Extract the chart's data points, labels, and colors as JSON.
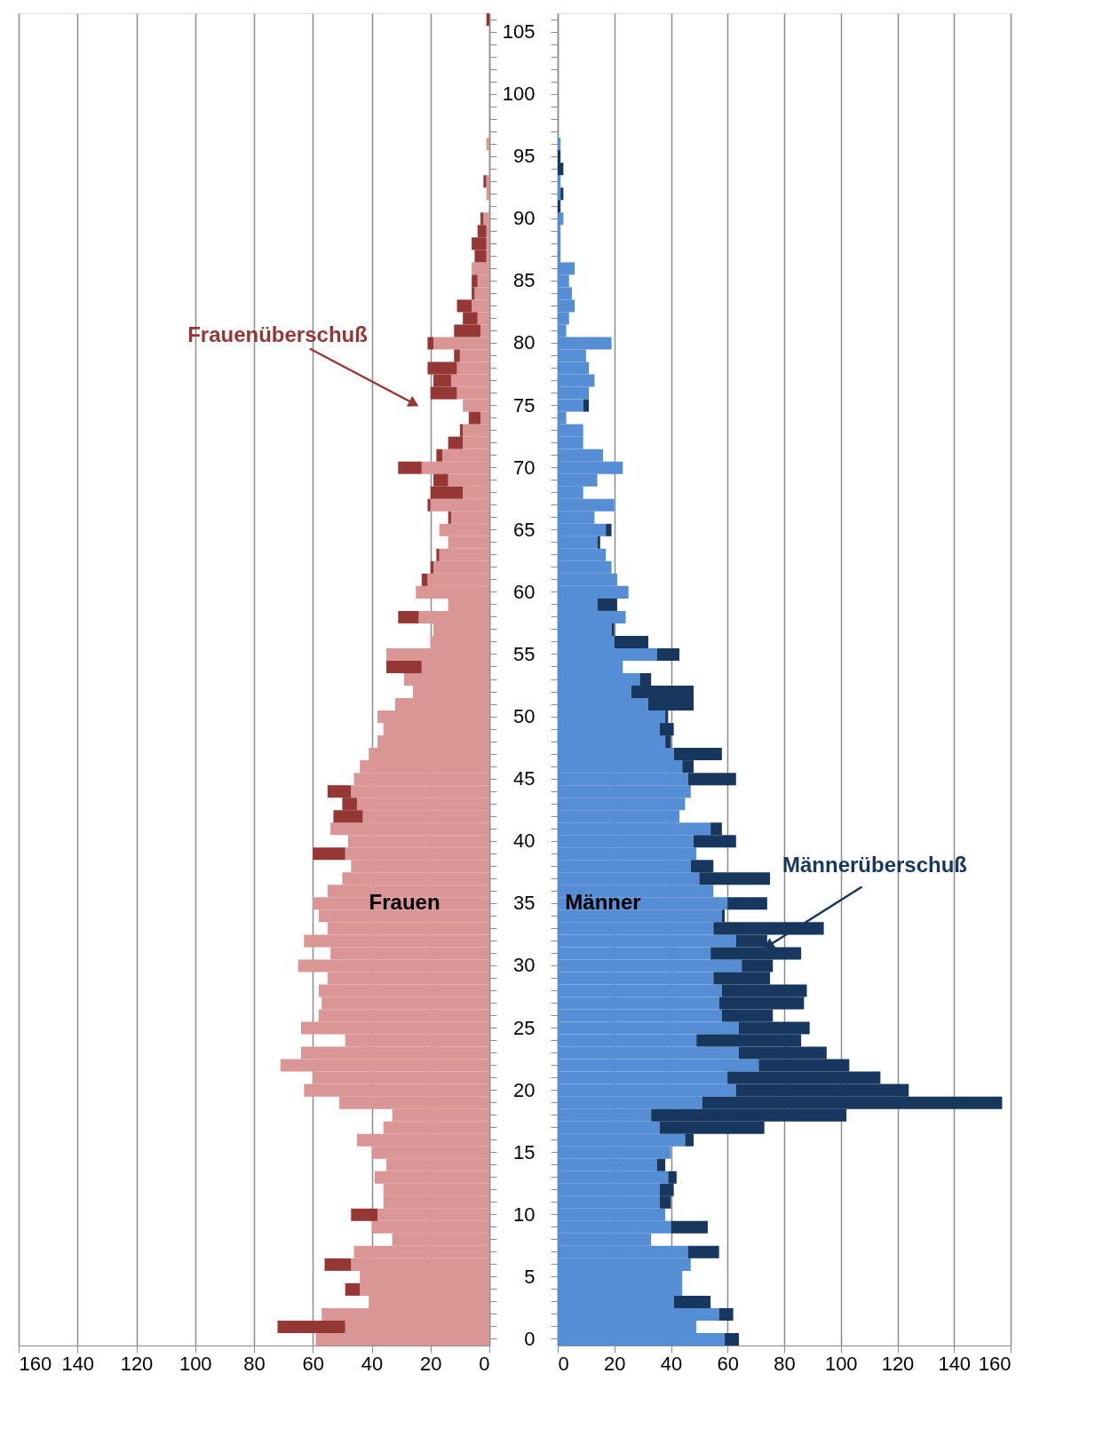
{
  "chart_data": [
    {
      "type": "bar",
      "orientation": "horizontal",
      "stacked": true,
      "grid": "x",
      "tick_labels": "x",
      "categories": [
        null,
        "105",
        null,
        null,
        null,
        null,
        "100",
        null,
        null,
        null,
        null,
        "95",
        null,
        null,
        null,
        null,
        "90",
        null,
        null,
        null,
        null,
        "85",
        null,
        null,
        null,
        null,
        "80",
        null,
        null,
        null,
        null,
        "75",
        null,
        null,
        null,
        null,
        "70",
        null,
        null,
        null,
        null,
        "65",
        null,
        null,
        null,
        null,
        "60",
        null,
        null,
        null,
        null,
        "55",
        null,
        null,
        null,
        null,
        "50",
        null,
        null,
        null,
        null,
        "45",
        null,
        null,
        null,
        null,
        "40",
        null,
        null,
        null,
        null,
        "35",
        null,
        null,
        null,
        null,
        "30",
        null,
        null,
        null,
        null,
        "25",
        null,
        null,
        null,
        null,
        "20",
        null,
        null,
        null,
        null,
        "15",
        null,
        null,
        null,
        null,
        "10",
        null,
        null,
        null,
        null,
        "5",
        null,
        null,
        null,
        null,
        "0"
      ],
      "xlim": [
        160,
        0
      ],
      "xticks": [
        160,
        140,
        120,
        100,
        80,
        60,
        40,
        20,
        0
      ],
      "series": [
        {
          "name": "Frauen",
          "color": "#d99694",
          "values": [
            null,
            null,
            null,
            null,
            null,
            null,
            null,
            null,
            null,
            null,
            1,
            null,
            null,
            1,
            1,
            null,
            2,
            1,
            1,
            1,
            6,
            4,
            5,
            6,
            4,
            3,
            19,
            10,
            11,
            13,
            11,
            9,
            3,
            9,
            9,
            16,
            23,
            14,
            9,
            20,
            13,
            17,
            14,
            17,
            19,
            21,
            25,
            14,
            24,
            19,
            20,
            35,
            23,
            29,
            26,
            32,
            38,
            36,
            38,
            41,
            44,
            46,
            47,
            45,
            43,
            54,
            48,
            49,
            47,
            50,
            55,
            60,
            58,
            55,
            63,
            54,
            65,
            55,
            58,
            57,
            58,
            64,
            49,
            64,
            71,
            60,
            63,
            51,
            33,
            36,
            45,
            40,
            35,
            39,
            36,
            36,
            38,
            40,
            33,
            46,
            47,
            44,
            44,
            41,
            57,
            49,
            59
          ]
        },
        {
          "name": "Frauenüberschuß",
          "color": "#953735",
          "values": [
            1,
            null,
            null,
            null,
            null,
            null,
            null,
            null,
            null,
            null,
            null,
            null,
            null,
            1,
            null,
            null,
            1,
            3,
            5,
            4,
            null,
            2,
            1,
            5,
            5,
            9,
            2,
            2,
            10,
            6,
            9,
            null,
            4,
            1,
            5,
            2,
            8,
            5,
            11,
            1,
            1,
            null,
            null,
            1,
            1,
            2,
            null,
            null,
            7,
            null,
            null,
            null,
            12,
            null,
            null,
            null,
            null,
            null,
            null,
            null,
            null,
            null,
            8,
            5,
            10,
            null,
            null,
            11,
            null,
            null,
            null,
            null,
            null,
            null,
            null,
            null,
            null,
            null,
            null,
            null,
            null,
            null,
            null,
            null,
            null,
            null,
            null,
            null,
            null,
            null,
            null,
            null,
            null,
            null,
            null,
            null,
            9,
            null,
            null,
            null,
            9,
            null,
            5,
            null,
            null,
            23,
            null
          ]
        }
      ]
    },
    {
      "type": "bar",
      "orientation": "horizontal",
      "stacked": true,
      "grid": "x",
      "categories": [
        null,
        "105",
        null,
        null,
        null,
        null,
        "100",
        null,
        null,
        null,
        null,
        "95",
        null,
        null,
        null,
        null,
        "90",
        null,
        null,
        null,
        null,
        "85",
        null,
        null,
        null,
        null,
        "80",
        null,
        null,
        null,
        null,
        "75",
        null,
        null,
        null,
        null,
        "70",
        null,
        null,
        null,
        null,
        "65",
        null,
        null,
        null,
        null,
        "60",
        null,
        null,
        null,
        null,
        "55",
        null,
        null,
        null,
        null,
        "50",
        null,
        null,
        null,
        null,
        "45",
        null,
        null,
        null,
        null,
        "40",
        null,
        null,
        null,
        null,
        "35",
        null,
        null,
        null,
        null,
        "30",
        null,
        null,
        null,
        null,
        "25",
        null,
        null,
        null,
        null,
        "20",
        null,
        null,
        null,
        null,
        "15",
        null,
        null,
        null,
        null,
        "10",
        null,
        null,
        null,
        null,
        "5",
        null,
        null,
        null,
        null,
        "0"
      ],
      "xlim": [
        0,
        160
      ],
      "xticks": [
        0,
        20,
        40,
        60,
        80,
        100,
        120,
        140,
        160
      ],
      "series": [
        {
          "name": "Männer",
          "color": "#558ed5",
          "values": [
            null,
            null,
            null,
            null,
            null,
            null,
            null,
            null,
            null,
            null,
            1,
            null,
            null,
            1,
            1,
            null,
            2,
            1,
            1,
            1,
            6,
            4,
            5,
            6,
            4,
            3,
            19,
            10,
            11,
            13,
            11,
            9,
            3,
            9,
            9,
            16,
            23,
            14,
            9,
            20,
            13,
            17,
            14,
            17,
            19,
            21,
            25,
            14,
            24,
            19,
            20,
            35,
            23,
            29,
            26,
            32,
            38,
            36,
            38,
            41,
            44,
            46,
            47,
            45,
            43,
            54,
            48,
            49,
            47,
            50,
            55,
            60,
            58,
            55,
            63,
            54,
            65,
            55,
            58,
            57,
            58,
            64,
            49,
            64,
            71,
            60,
            63,
            51,
            33,
            36,
            45,
            40,
            35,
            39,
            36,
            36,
            38,
            40,
            33,
            46,
            47,
            44,
            44,
            41,
            57,
            49,
            59
          ]
        },
        {
          "name": "Männerüberschuß",
          "color": "#17375e",
          "values": [
            null,
            null,
            null,
            null,
            null,
            null,
            null,
            null,
            null,
            null,
            null,
            1,
            2,
            null,
            1,
            1,
            null,
            null,
            null,
            null,
            null,
            null,
            null,
            null,
            null,
            null,
            null,
            null,
            null,
            null,
            null,
            2,
            null,
            null,
            null,
            null,
            null,
            null,
            null,
            null,
            null,
            2,
            1,
            null,
            null,
            null,
            null,
            7,
            null,
            1,
            12,
            8,
            null,
            4,
            22,
            16,
            1,
            5,
            2,
            17,
            4,
            17,
            null,
            null,
            null,
            4,
            15,
            null,
            8,
            25,
            null,
            14,
            1,
            39,
            11,
            32,
            11,
            20,
            30,
            30,
            18,
            25,
            37,
            31,
            32,
            54,
            61,
            106,
            69,
            37,
            3,
            null,
            3,
            3,
            5,
            4,
            null,
            13,
            null,
            11,
            null,
            null,
            null,
            13,
            5,
            null,
            5
          ]
        }
      ]
    }
  ]
}
